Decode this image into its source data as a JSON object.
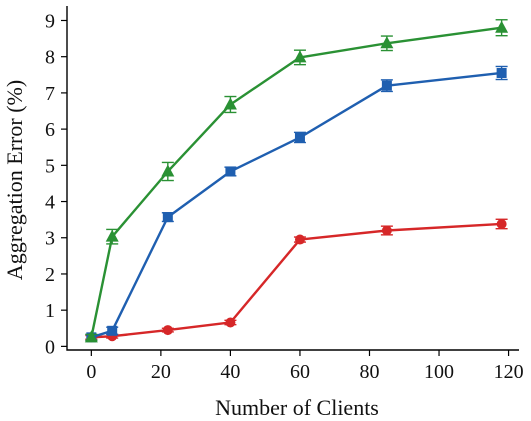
{
  "chart_data": {
    "type": "line",
    "title": "",
    "xlabel": "Number of Clients",
    "ylabel": "Aggregation Error (%)",
    "xlim": [
      -7,
      123
    ],
    "ylim": [
      -0.1,
      9.4
    ],
    "xticks": [
      0,
      20,
      40,
      60,
      80,
      100,
      120
    ],
    "yticks": [
      0,
      1,
      2,
      3,
      4,
      5,
      6,
      7,
      8,
      9
    ],
    "legend": "none",
    "grid": false,
    "series": [
      {
        "color": "#d62728",
        "marker": "circle",
        "x": [
          0,
          6,
          22,
          40,
          60,
          85,
          118
        ],
        "y": [
          0.25,
          0.28,
          0.45,
          0.66,
          2.95,
          3.2,
          3.38
        ],
        "err": [
          0.05,
          0.05,
          0.05,
          0.06,
          0.07,
          0.12,
          0.13
        ]
      },
      {
        "color": "#1f5fb0",
        "marker": "square",
        "x": [
          0,
          6,
          22,
          40,
          60,
          85,
          118
        ],
        "y": [
          0.25,
          0.43,
          3.57,
          4.83,
          5.77,
          7.2,
          7.55
        ],
        "err": [
          0.08,
          0.1,
          0.12,
          0.12,
          0.14,
          0.16,
          0.18
        ]
      },
      {
        "color": "#2a9134",
        "marker": "triangle",
        "x": [
          0,
          6,
          22,
          40,
          60,
          85,
          118
        ],
        "y": [
          0.25,
          3.03,
          4.83,
          6.68,
          7.98,
          8.37,
          8.8
        ],
        "err": [
          0.08,
          0.2,
          0.25,
          0.22,
          0.2,
          0.2,
          0.22
        ]
      }
    ]
  }
}
